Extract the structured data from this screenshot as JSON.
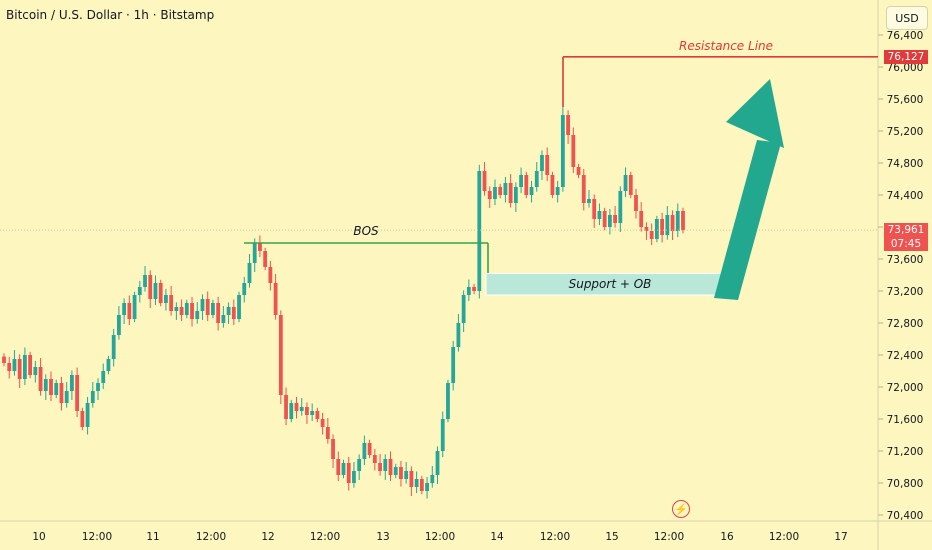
{
  "header": {
    "title": "Bitcoin / U.S. Dollar · 1h · Bitstamp",
    "unit": "USD"
  },
  "colors": {
    "up": "#26a69a",
    "down": "#ef5350",
    "background": "#fdf6bf",
    "bos": "#3aa24a",
    "resistance": "#e03a3a",
    "zone": "#b9e8d8",
    "arrow": "#22a88e"
  },
  "chart_data": {
    "type": "candlestick",
    "ylim": [
      70300,
      76900
    ],
    "y_ticks": [
      "76,400",
      "76,000",
      "75,600",
      "75,200",
      "74,800",
      "74,400",
      "74,000",
      "73,600",
      "73,200",
      "72,800",
      "72,400",
      "72,000",
      "71,600",
      "71,200",
      "70,800",
      "70,400"
    ],
    "x_ticks": [
      "10",
      "12:00",
      "11",
      "12:00",
      "12",
      "12:00",
      "13",
      "12:00",
      "14",
      "12:00",
      "15",
      "12:00",
      "16",
      "12:00",
      "17"
    ],
    "close_path": [
      72300,
      72200,
      72350,
      72100,
      72400,
      72150,
      72250,
      71950,
      72100,
      71900,
      72050,
      71800,
      71950,
      72150,
      71700,
      71500,
      71800,
      71950,
      72050,
      72200,
      72350,
      72650,
      72900,
      73050,
      72850,
      73150,
      73250,
      73400,
      73100,
      73300,
      73050,
      73150,
      72950,
      73000,
      72900,
      73050,
      72850,
      72950,
      73100,
      72900,
      73050,
      72800,
      72900,
      73000,
      72850,
      73150,
      73300,
      73550,
      73800,
      73700,
      73500,
      73300,
      72900,
      71900,
      71600,
      71800,
      71700,
      71750,
      71650,
      71700,
      71600,
      71500,
      71350,
      71100,
      70900,
      71050,
      70800,
      70950,
      71100,
      71300,
      71150,
      71050,
      70950,
      71100,
      70900,
      71000,
      70850,
      70950,
      70750,
      70850,
      70700,
      70800,
      70900,
      71200,
      71600,
      72050,
      72500,
      72800,
      73150,
      73250,
      73200,
      74700,
      74450,
      74350,
      74500,
      74400,
      74550,
      74300,
      74500,
      74650,
      74400,
      74500,
      74700,
      74900,
      74650,
      74400,
      74500,
      75400,
      75150,
      74750,
      74650,
      74300,
      74350,
      74100,
      74200,
      74000,
      74150,
      74050,
      74450,
      74650,
      74400,
      74200,
      74000,
      73950,
      73850,
      74100,
      73900,
      74150,
      73950,
      74200,
      73961
    ],
    "last_price": "73,961",
    "countdown": "07:45",
    "annotations": {
      "bos": {
        "label": "BOS",
        "price": 73800
      },
      "resistance": {
        "label": "Resistance Line",
        "price": "76,127",
        "value": 76127
      },
      "support": {
        "label": "Support + OB",
        "low": 73150,
        "high": 73420
      }
    }
  }
}
